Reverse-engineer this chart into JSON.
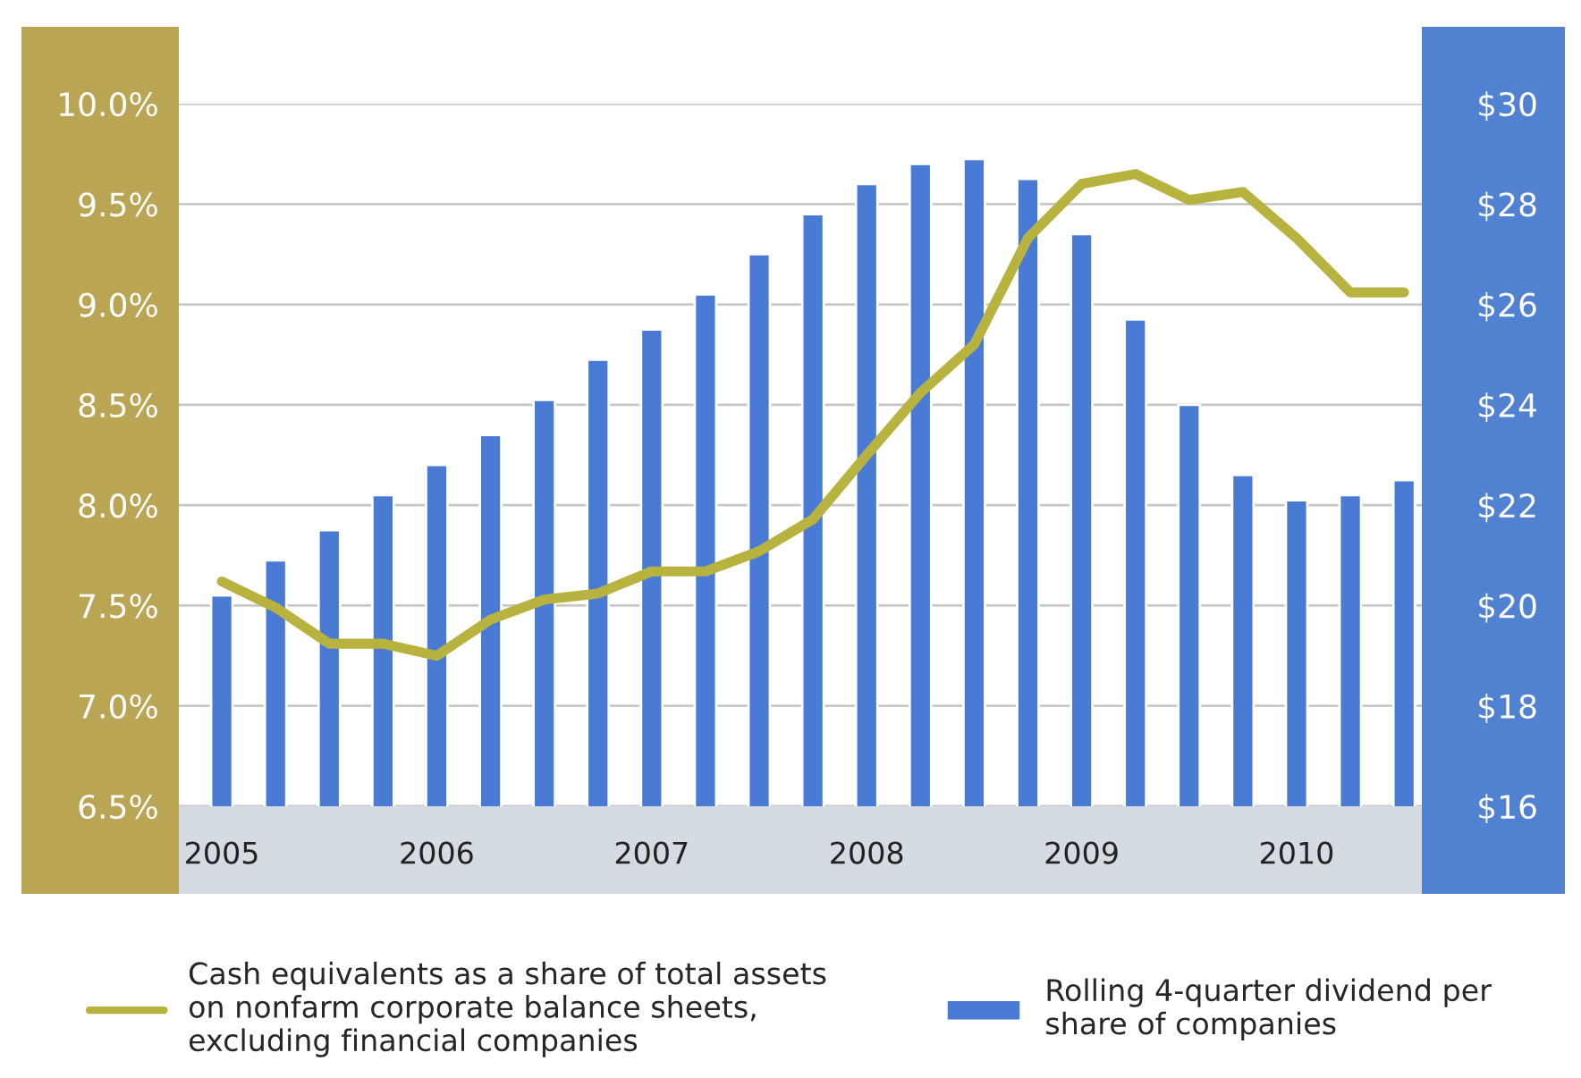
{
  "chart_data": {
    "type": "bar",
    "categories": [
      "2005",
      null,
      null,
      null,
      "2006",
      null,
      null,
      null,
      "2007",
      null,
      null,
      null,
      "2008",
      null,
      null,
      null,
      "2009",
      null,
      null,
      null,
      "2010",
      null,
      null
    ],
    "series": [
      {
        "name": "Rolling 4-quarter dividend per\nshare of companies",
        "axis": "y2",
        "color": "#4a7bd4",
        "values": [
          20.2,
          20.9,
          21.5,
          22.2,
          22.8,
          23.4,
          24.1,
          24.9,
          25.5,
          26.2,
          27.0,
          27.8,
          28.4,
          28.8,
          28.9,
          28.5,
          27.4,
          25.7,
          24.0,
          22.6,
          22.1,
          22.2,
          22.5
        ]
      },
      {
        "name": "Cash equivalents as a share of total assets\non nonfarm corporate balance sheets,\nexcluding financial companies",
        "type": "line",
        "color": "#b8b33e",
        "values": [
          7.62,
          7.49,
          7.31,
          7.31,
          7.25,
          7.43,
          7.53,
          7.56,
          7.67,
          7.67,
          7.77,
          7.93,
          8.25,
          8.56,
          8.8,
          9.33,
          9.6,
          9.65,
          9.52,
          9.56,
          9.33,
          9.06,
          9.06
        ]
      }
    ],
    "ylim": [
      6.5,
      10.0
    ],
    "yticks": [
      {
        "value": 6.5,
        "label": "6.5%"
      },
      {
        "value": 7.0,
        "label": "7.0%"
      },
      {
        "value": 7.5,
        "label": "7.5%"
      },
      {
        "value": 8.0,
        "label": "8.0%"
      },
      {
        "value": 8.5,
        "label": "8.5%"
      },
      {
        "value": 9.0,
        "label": "9.0%"
      },
      {
        "value": 9.5,
        "label": "9.5%"
      },
      {
        "value": 10.0,
        "label": "10.0%"
      }
    ],
    "y2lim": [
      16,
      30
    ],
    "y2ticks": [
      {
        "value": 16,
        "label": "$16"
      },
      {
        "value": 18,
        "label": "$18"
      },
      {
        "value": 20,
        "label": "$20"
      },
      {
        "value": 22,
        "label": "$22"
      },
      {
        "value": 24,
        "label": "$24"
      },
      {
        "value": 26,
        "label": "$26"
      },
      {
        "value": 28,
        "label": "$28"
      },
      {
        "value": 30,
        "label": "$30"
      }
    ],
    "grid": "y",
    "legend": "bottom"
  }
}
